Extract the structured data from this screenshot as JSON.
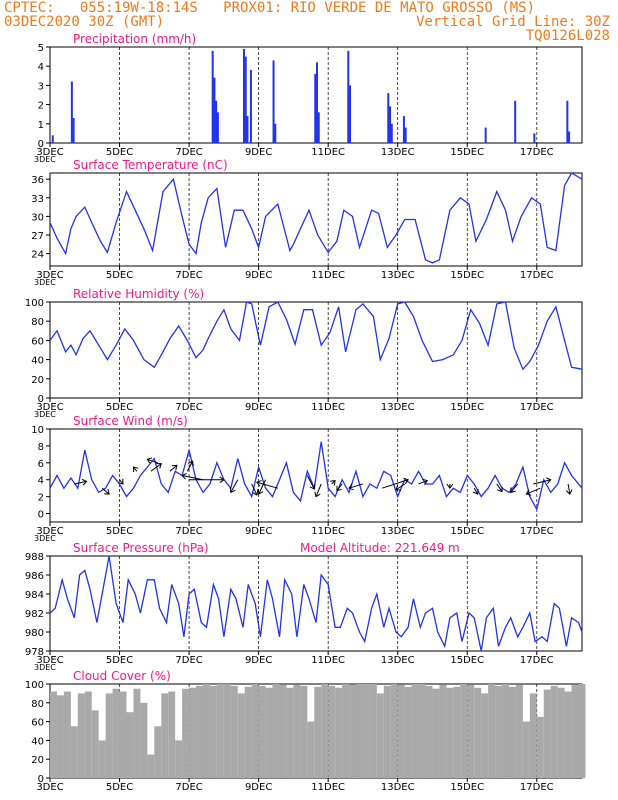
{
  "header": {
    "line1": "CPTEC:   055:19W-18:14S   PROX01: RIO VERDE DE MATO GROSSO (MS)",
    "line2_left": "03DEC2020 30Z (GMT)",
    "line2_right": "Vertical Grid Line: 30Z",
    "line3_right": "TQ0126L028"
  },
  "x_axis": {
    "start_label": "3DEC",
    "tick_labels": [
      "3DEC",
      "5DEC",
      "7DEC",
      "9DEC",
      "11DEC",
      "13DEC",
      "15DEC",
      "17DEC"
    ],
    "tick_days": [
      0,
      2,
      4,
      6,
      8,
      10,
      12,
      14
    ],
    "days_total": 15.3
  },
  "chart_data": [
    {
      "type": "bar",
      "title": "Precipitation (mm/h)",
      "ylim": [
        0,
        5
      ],
      "yticks": [
        0,
        1,
        2,
        3,
        4,
        5
      ],
      "bar_color": "#2233ee",
      "x": [
        0.05,
        0.6,
        0.65,
        4.65,
        4.7,
        4.75,
        4.8,
        5.55,
        5.6,
        5.65,
        5.75,
        6.4,
        6.45,
        7.6,
        7.65,
        7.7,
        8.55,
        8.6,
        9.7,
        9.75,
        9.8,
        10.15,
        10.2,
        12.5,
        13.35,
        13.9,
        14.85,
        14.9
      ],
      "values": [
        0.4,
        3.2,
        1.3,
        4.8,
        3.4,
        2.2,
        1.6,
        4.9,
        4.5,
        1.4,
        3.8,
        4.3,
        1.0,
        3.6,
        4.2,
        1.6,
        4.8,
        3.0,
        2.6,
        1.9,
        1.0,
        1.4,
        0.8,
        0.8,
        2.2,
        0.5,
        2.2,
        0.6
      ]
    },
    {
      "type": "line",
      "title": "Surface Temperature (nC)",
      "ylim": [
        22,
        37
      ],
      "yticks": [
        24,
        27,
        30,
        33,
        36
      ],
      "line_color": "#2233ee",
      "x": [
        0,
        0.2,
        0.45,
        0.6,
        0.75,
        1.0,
        1.2,
        1.45,
        1.65,
        1.9,
        2.2,
        2.45,
        2.7,
        2.95,
        3.25,
        3.55,
        3.8,
        4.0,
        4.2,
        4.35,
        4.55,
        4.8,
        5.05,
        5.3,
        5.55,
        5.8,
        6.0,
        6.2,
        6.55,
        6.9,
        7.0,
        7.2,
        7.45,
        7.7,
        8.0,
        8.25,
        8.45,
        8.7,
        8.9,
        9.25,
        9.45,
        9.7,
        9.95,
        10.2,
        10.5,
        10.8,
        11.0,
        11.2,
        11.5,
        11.8,
        12.05,
        12.25,
        12.55,
        12.85,
        13.1,
        13.3,
        13.55,
        13.85,
        14.1,
        14.3,
        14.55,
        14.8,
        15.0,
        15.3
      ],
      "values": [
        29,
        26.5,
        24,
        28,
        30,
        31.5,
        29,
        26,
        24.2,
        29,
        34,
        31,
        28,
        24.5,
        34,
        36,
        30,
        25.5,
        24,
        29,
        33,
        34.5,
        25,
        31,
        31,
        28,
        25,
        30,
        32,
        24.5,
        25.5,
        28,
        31,
        27,
        24.2,
        26,
        31,
        30,
        25,
        31,
        30.5,
        25,
        27,
        29.5,
        29.5,
        23,
        22.5,
        23,
        31,
        33,
        32,
        26,
        29.5,
        34,
        31,
        26,
        30,
        33,
        32,
        25,
        24.5,
        35,
        37,
        36
      ]
    },
    {
      "type": "line",
      "title": "Relative Humidity (%)",
      "ylim": [
        0,
        100
      ],
      "yticks": [
        0,
        20,
        40,
        60,
        80,
        100
      ],
      "line_color": "#2233ee",
      "x": [
        0,
        0.2,
        0.45,
        0.6,
        0.75,
        0.95,
        1.15,
        1.4,
        1.65,
        1.9,
        2.15,
        2.4,
        2.7,
        3.0,
        3.25,
        3.45,
        3.7,
        3.95,
        4.2,
        4.4,
        4.55,
        4.8,
        5.0,
        5.2,
        5.45,
        5.65,
        5.8,
        6.05,
        6.3,
        6.55,
        6.8,
        7.05,
        7.3,
        7.55,
        7.8,
        8.05,
        8.3,
        8.5,
        8.8,
        9.0,
        9.3,
        9.5,
        9.75,
        10.0,
        10.2,
        10.45,
        10.7,
        11.0,
        11.3,
        11.6,
        11.85,
        12.1,
        12.35,
        12.6,
        12.85,
        13.1,
        13.35,
        13.6,
        13.8,
        14.05,
        14.3,
        14.55,
        14.8,
        15.0,
        15.3
      ],
      "values": [
        60,
        70,
        48,
        55,
        45,
        62,
        70,
        55,
        40,
        55,
        72,
        60,
        40,
        32,
        48,
        62,
        75,
        60,
        42,
        50,
        62,
        80,
        92,
        72,
        60,
        100,
        98,
        55,
        95,
        100,
        82,
        56,
        92,
        92,
        55,
        68,
        95,
        48,
        92,
        98,
        85,
        40,
        62,
        98,
        100,
        85,
        60,
        38,
        40,
        45,
        60,
        92,
        78,
        55,
        98,
        100,
        52,
        30,
        38,
        55,
        80,
        95,
        60,
        32,
        30
      ]
    },
    {
      "type": "line",
      "title": "Surface Wind (m/s)",
      "ylim": [
        -1,
        10
      ],
      "yticks": [
        0,
        2,
        4,
        6,
        8,
        10
      ],
      "line_color": "#2233ee",
      "arrow_color": "#000000",
      "x": [
        0,
        0.2,
        0.4,
        0.6,
        0.8,
        1.0,
        1.2,
        1.4,
        1.6,
        1.8,
        2.0,
        2.2,
        2.4,
        2.6,
        2.8,
        3.0,
        3.2,
        3.4,
        3.6,
        3.8,
        4.0,
        4.2,
        4.4,
        4.6,
        4.8,
        5.0,
        5.2,
        5.4,
        5.6,
        5.8,
        6.0,
        6.2,
        6.4,
        6.6,
        6.8,
        7.0,
        7.2,
        7.4,
        7.6,
        7.8,
        8.0,
        8.2,
        8.4,
        8.6,
        8.8,
        9.0,
        9.2,
        9.4,
        9.6,
        9.8,
        10.0,
        10.2,
        10.4,
        10.6,
        10.8,
        11.0,
        11.2,
        11.4,
        11.6,
        11.8,
        12.0,
        12.2,
        12.4,
        12.6,
        12.8,
        13.0,
        13.2,
        13.4,
        13.6,
        13.8,
        14.0,
        14.2,
        14.4,
        14.6,
        14.8,
        15.0,
        15.3
      ],
      "values": [
        3.0,
        4.5,
        3.0,
        4.2,
        3.0,
        7.5,
        4.0,
        2.5,
        3.0,
        4.5,
        3.5,
        2.0,
        3.0,
        4.5,
        5.5,
        6.5,
        3.5,
        2.5,
        5.0,
        4.5,
        7.5,
        4.0,
        2.5,
        3.5,
        6.0,
        4.0,
        3.0,
        6.5,
        3.5,
        2.0,
        5.5,
        3.0,
        2.0,
        4.0,
        6.0,
        2.5,
        1.5,
        5.0,
        3.0,
        8.5,
        3.0,
        2.0,
        4.0,
        2.5,
        5.0,
        2.0,
        3.5,
        3.0,
        5.0,
        4.5,
        2.0,
        4.0,
        3.5,
        5.0,
        3.5,
        3.5,
        4.5,
        2.0,
        3.0,
        2.5,
        4.5,
        3.5,
        2.0,
        3.0,
        4.5,
        3.0,
        2.5,
        3.5,
        5.5,
        2.0,
        0.5,
        4.0,
        2.5,
        3.5,
        6.0,
        4.5,
        3.0
      ],
      "wind_vectors": [
        {
          "x": 0.7,
          "y": 3.5,
          "dx": 0.35,
          "dy": 0.3
        },
        {
          "x": 1.5,
          "y": 3.0,
          "dx": 0.2,
          "dy": -0.7
        },
        {
          "x": 2.0,
          "y": 4.0,
          "dx": 0.1,
          "dy": -0.5
        },
        {
          "x": 2.5,
          "y": 5.0,
          "dx": -0.1,
          "dy": 0.5
        },
        {
          "x": 2.9,
          "y": 5.0,
          "dx": 0.3,
          "dy": 0.9
        },
        {
          "x": 3.1,
          "y": 6.0,
          "dx": -0.3,
          "dy": 0.4
        },
        {
          "x": 3.45,
          "y": 5.0,
          "dx": 0.2,
          "dy": 0.7
        },
        {
          "x": 3.95,
          "y": 5.0,
          "dx": 0.15,
          "dy": 1.2
        },
        {
          "x": 4.0,
          "y": 4.0,
          "dx": 1.0,
          "dy": 0.0
        },
        {
          "x": 4.4,
          "y": 4.0,
          "dx": -0.6,
          "dy": 0.5
        },
        {
          "x": 5.4,
          "y": 4.0,
          "dx": -0.2,
          "dy": -1.5
        },
        {
          "x": 5.8,
          "y": 3.5,
          "dx": 0.15,
          "dy": -1.3
        },
        {
          "x": 6.2,
          "y": 4.0,
          "dx": -0.2,
          "dy": -1.7
        },
        {
          "x": 6.55,
          "y": 3.0,
          "dx": -0.6,
          "dy": 0.7
        },
        {
          "x": 7.4,
          "y": 4.5,
          "dx": 0.2,
          "dy": -1.6
        },
        {
          "x": 7.8,
          "y": 3.5,
          "dx": -0.15,
          "dy": -1.5
        },
        {
          "x": 8.1,
          "y": 3.5,
          "dx": 0.1,
          "dy": 0.4
        },
        {
          "x": 8.4,
          "y": 3.5,
          "dx": -0.15,
          "dy": -0.8
        },
        {
          "x": 9.0,
          "y": 3.5,
          "dx": -0.4,
          "dy": -0.5
        },
        {
          "x": 9.55,
          "y": 3.0,
          "dx": 0.75,
          "dy": 1.0
        },
        {
          "x": 10.2,
          "y": 3.5,
          "dx": -0.25,
          "dy": -0.7
        },
        {
          "x": 10.6,
          "y": 3.5,
          "dx": 0.25,
          "dy": 0.4
        },
        {
          "x": 11.5,
          "y": 3.5,
          "dx": 0.0,
          "dy": -0.5
        },
        {
          "x": 12.2,
          "y": 3.0,
          "dx": 0.1,
          "dy": -0.7
        },
        {
          "x": 12.85,
          "y": 3.5,
          "dx": 0.15,
          "dy": -0.9
        },
        {
          "x": 13.45,
          "y": 3.5,
          "dx": -0.2,
          "dy": -1.0
        },
        {
          "x": 13.9,
          "y": 3.5,
          "dx": 0.5,
          "dy": 0.5
        },
        {
          "x": 14.1,
          "y": 3.0,
          "dx": -0.4,
          "dy": -0.7
        },
        {
          "x": 14.9,
          "y": 3.5,
          "dx": 0.05,
          "dy": -1.2
        }
      ]
    },
    {
      "type": "line",
      "title": "Surface Pressure (hPa)",
      "annotation": "Model Altitude: 221.649  m",
      "ylim": [
        978,
        988
      ],
      "yticks": [
        978,
        980,
        982,
        984,
        986,
        988
      ],
      "line_color": "#2233ee",
      "x": [
        0,
        0.15,
        0.35,
        0.5,
        0.7,
        0.85,
        1.0,
        1.15,
        1.35,
        1.55,
        1.7,
        1.9,
        2.1,
        2.25,
        2.45,
        2.6,
        2.8,
        3.0,
        3.15,
        3.35,
        3.5,
        3.7,
        3.85,
        4.0,
        4.15,
        4.35,
        4.5,
        4.7,
        4.85,
        5.0,
        5.2,
        5.35,
        5.55,
        5.7,
        5.9,
        6.05,
        6.25,
        6.4,
        6.6,
        6.75,
        6.95,
        7.1,
        7.3,
        7.45,
        7.65,
        7.8,
        8.0,
        8.2,
        8.35,
        8.55,
        8.7,
        8.9,
        9.05,
        9.25,
        9.4,
        9.6,
        9.75,
        9.95,
        10.1,
        10.3,
        10.45,
        10.65,
        10.8,
        11.0,
        11.15,
        11.35,
        11.5,
        11.7,
        11.85,
        12.05,
        12.2,
        12.4,
        12.55,
        12.75,
        12.9,
        13.1,
        13.25,
        13.45,
        13.6,
        13.8,
        13.95,
        14.15,
        14.3,
        14.5,
        14.65,
        14.85,
        15.0,
        15.2,
        15.3
      ],
      "values": [
        982,
        982.5,
        985.5,
        983.5,
        981.5,
        986,
        986.5,
        984.5,
        981,
        985,
        988,
        983,
        981,
        985.5,
        984,
        982,
        985.5,
        985.5,
        982.5,
        981,
        985,
        983,
        979.5,
        984,
        984.5,
        981,
        980.5,
        985,
        983.5,
        979.5,
        984.5,
        983.5,
        980.5,
        985,
        983,
        979.5,
        985.5,
        983.5,
        979.5,
        985.5,
        984,
        979.5,
        985,
        983.5,
        981,
        986,
        985,
        980.5,
        980.5,
        982.5,
        982,
        980,
        979,
        982.5,
        984,
        980.5,
        982.5,
        980,
        979.5,
        980.5,
        983.5,
        980.5,
        982,
        982.5,
        980,
        978.5,
        981.5,
        982,
        979,
        982,
        981.5,
        978,
        981.5,
        982.5,
        978.5,
        980.5,
        981.5,
        979.5,
        980.5,
        982,
        979,
        979.5,
        979,
        983,
        982.5,
        978.5,
        981.5,
        981,
        980
      ]
    },
    {
      "type": "bar",
      "title": "Cloud Cover (%)",
      "ylim": [
        0,
        100
      ],
      "yticks": [
        0,
        20,
        40,
        60,
        80,
        100
      ],
      "bar_color": "#a9a9a9",
      "x": [
        0.0,
        0.2,
        0.4,
        0.6,
        0.8,
        1.0,
        1.2,
        1.4,
        1.6,
        1.8,
        2.0,
        2.2,
        2.4,
        2.6,
        2.8,
        3.0,
        3.2,
        3.4,
        3.6,
        3.8,
        4.0,
        4.2,
        4.4,
        4.6,
        4.8,
        5.0,
        5.2,
        5.4,
        5.6,
        5.8,
        6.0,
        6.2,
        6.4,
        6.6,
        6.8,
        7.0,
        7.2,
        7.4,
        7.6,
        7.8,
        8.0,
        8.2,
        8.4,
        8.6,
        8.8,
        9.0,
        9.2,
        9.4,
        9.6,
        9.8,
        10.0,
        10.2,
        10.4,
        10.6,
        10.8,
        11.0,
        11.2,
        11.4,
        11.6,
        11.8,
        12.0,
        12.2,
        12.4,
        12.6,
        12.8,
        13.0,
        13.2,
        13.4,
        13.6,
        13.8,
        14.0,
        14.2,
        14.4,
        14.6,
        14.8,
        15.0,
        15.2
      ],
      "values": [
        92,
        88,
        92,
        55,
        90,
        92,
        72,
        40,
        90,
        95,
        92,
        70,
        95,
        80,
        25,
        55,
        90,
        92,
        40,
        95,
        96,
        98,
        100,
        98,
        100,
        100,
        98,
        90,
        97,
        100,
        98,
        96,
        100,
        99,
        96,
        99,
        98,
        60,
        97,
        100,
        98,
        96,
        100,
        99,
        100,
        100,
        100,
        90,
        98,
        100,
        99,
        97,
        100,
        100,
        98,
        95,
        99,
        96,
        97,
        100,
        99,
        96,
        90,
        100,
        98,
        100,
        97,
        99,
        60,
        90,
        65,
        94,
        98,
        96,
        92,
        99,
        100
      ]
    }
  ]
}
